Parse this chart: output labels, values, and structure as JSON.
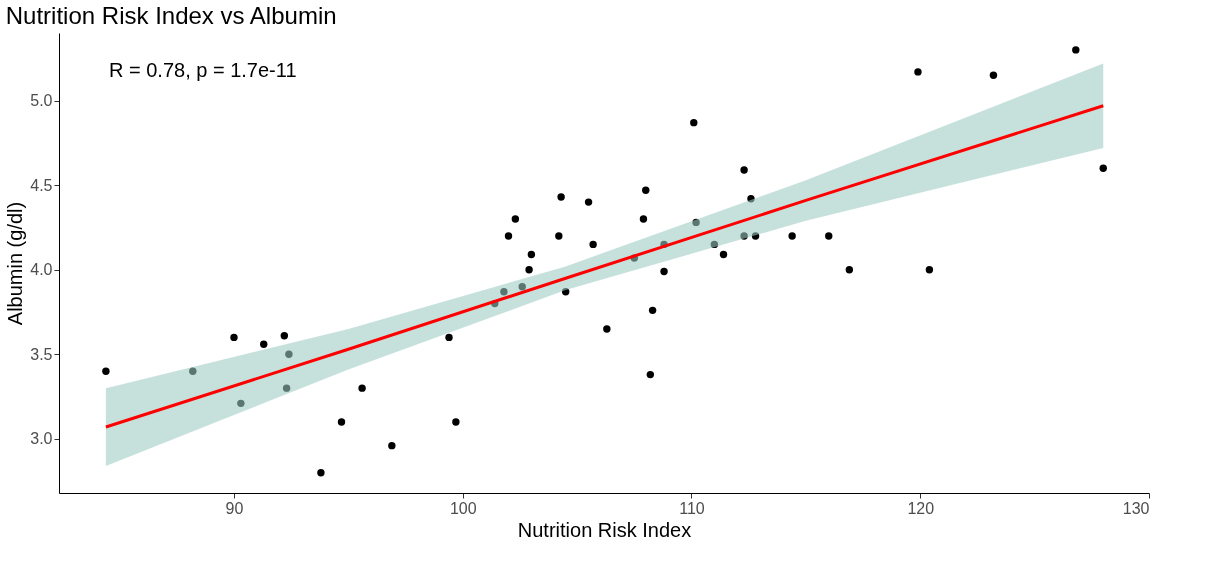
{
  "chart_data": {
    "type": "scatter",
    "title": "Nutrition Risk Index vs Albumin",
    "xlabel": "Nutrition Risk Index",
    "ylabel": "Albumin (g/dl)",
    "annotations": [
      "R = 0.78, p = 1.7e-11"
    ],
    "xlim": [
      82.35,
      130
    ],
    "xticks": [
      90,
      100,
      110,
      120,
      130
    ],
    "ylim": [
      2.68,
      5.4
    ],
    "yticks": [
      {
        "value": 3,
        "label": "3.0"
      },
      {
        "value": 3.5,
        "label": "3.5"
      },
      {
        "value": 4,
        "label": "4.0"
      },
      {
        "value": 4.5,
        "label": "4.5"
      },
      {
        "value": 5,
        "label": "5.0"
      }
    ],
    "grid": false,
    "marker": "circle",
    "series": [
      {
        "color": "#000000",
        "x": [
          84.4,
          88.2,
          90.0,
          90.3,
          91.3,
          92.2,
          92.4,
          92.3,
          93.8,
          94.7,
          95.6,
          96.9,
          99.4,
          99.7,
          101.4,
          101.8,
          102.0,
          102.3,
          102.6,
          102.9,
          103.0,
          104.2,
          104.3,
          104.5,
          105.5,
          105.7,
          106.3,
          107.5,
          107.9,
          108.0,
          108.2,
          108.3,
          108.8,
          108.8,
          110.1,
          110.2,
          111.0,
          111.4,
          112.3,
          112.3,
          112.6,
          112.8,
          114.4,
          116.0,
          116.9,
          119.9,
          120.4,
          123.2,
          126.8,
          128.0
        ],
        "values": [
          3.4,
          3.4,
          3.6,
          3.21,
          3.56,
          3.61,
          3.5,
          3.3,
          2.8,
          3.1,
          3.3,
          2.96,
          3.6,
          3.1,
          3.8,
          3.87,
          4.2,
          4.3,
          3.9,
          4.0,
          4.09,
          4.2,
          4.43,
          3.87,
          4.4,
          4.15,
          3.65,
          4.07,
          4.3,
          4.47,
          3.38,
          3.76,
          4.15,
          3.99,
          4.87,
          4.28,
          4.15,
          4.09,
          4.59,
          4.2,
          4.42,
          4.2,
          4.2,
          4.2,
          4.0,
          5.17,
          4.0,
          5.15,
          5.3,
          4.6
        ]
      },
      {
        "type": "line",
        "marker": "none",
        "color": "#ff0000",
        "x": [
          84.4,
          95,
          104.5,
          115,
          128
        ],
        "values": [
          3.07,
          3.53,
          3.95,
          4.41,
          4.97
        ],
        "lower": [
          2.84,
          3.41,
          3.88,
          4.29,
          4.72
        ],
        "upper": [
          3.3,
          3.65,
          4.02,
          4.53,
          5.22
        ]
      }
    ]
  }
}
